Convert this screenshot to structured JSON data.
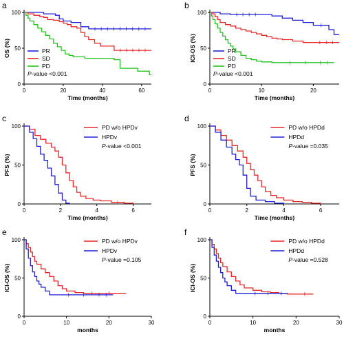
{
  "chart_data": [
    {
      "letter": "a",
      "type": "line",
      "step": true,
      "xlabel": "Time (months)",
      "ylabel": "OS (%)",
      "xlim": [
        0,
        65
      ],
      "ylim": [
        0,
        100
      ],
      "xticks": [
        0,
        20,
        40,
        60
      ],
      "yticks": [
        0,
        50,
        100
      ],
      "legend": "bottom-left",
      "pvalue": {
        "label": "P",
        "text": "-value <0.001"
      },
      "series": [
        {
          "name": "PR",
          "color": "#1f1fd6",
          "x": [
            0,
            4,
            10,
            14,
            16,
            18,
            20,
            22,
            24,
            27,
            29,
            33,
            65
          ],
          "y": [
            100,
            100,
            98,
            98,
            96,
            91,
            88,
            88,
            86,
            86,
            80,
            77,
            77
          ]
        },
        {
          "name": "SD",
          "color": "#e8262a",
          "x": [
            0,
            2,
            5,
            8,
            10,
            12,
            15,
            18,
            20,
            22,
            24,
            27,
            29,
            31,
            33,
            36,
            39,
            42,
            46,
            65
          ],
          "y": [
            100,
            98,
            96,
            94,
            93,
            90,
            89,
            87,
            85,
            83,
            80,
            78,
            72,
            66,
            62,
            57,
            53,
            53,
            47,
            47
          ]
        },
        {
          "name": "PD",
          "color": "#22c31f",
          "x": [
            0,
            1,
            2,
            3,
            5,
            7,
            9,
            11,
            13,
            15,
            17,
            19,
            21,
            23,
            25,
            28,
            31,
            35,
            38,
            42,
            46,
            49,
            55,
            58,
            64,
            65
          ],
          "y": [
            100,
            96,
            92,
            88,
            83,
            78,
            73,
            68,
            63,
            57,
            52,
            47,
            42,
            40,
            38,
            38,
            36,
            36,
            36,
            36,
            34,
            22,
            22,
            18,
            13,
            13
          ]
        }
      ]
    },
    {
      "letter": "b",
      "type": "line",
      "step": true,
      "xlabel": "Time (months)",
      "ylabel": "ICI-OS  (%)",
      "xlim": [
        0,
        25
      ],
      "ylim": [
        0,
        100
      ],
      "xticks": [
        0,
        10,
        20
      ],
      "yticks": [
        0,
        50,
        100
      ],
      "legend": "bottom-left",
      "pvalue": {
        "label": "P",
        "text": "-value <0.001"
      },
      "series": [
        {
          "name": "PR",
          "color": "#1f1fd6",
          "x": [
            0,
            2,
            4,
            10,
            12,
            14,
            16,
            18,
            20,
            23,
            24,
            25
          ],
          "y": [
            100,
            98,
            97,
            97,
            95,
            92,
            89,
            86,
            82,
            76,
            69,
            69
          ]
        },
        {
          "name": "SD",
          "color": "#e8262a",
          "x": [
            0,
            0.5,
            1,
            1.5,
            2,
            3,
            4,
            5,
            6,
            7,
            8,
            9,
            10,
            11,
            12,
            13,
            14,
            16,
            18,
            20,
            25
          ],
          "y": [
            100,
            98,
            94,
            90,
            86,
            83,
            81,
            78,
            76,
            74,
            72,
            70,
            68,
            66,
            64,
            63,
            62,
            60,
            58,
            58,
            58
          ]
        },
        {
          "name": "PD",
          "color": "#22c31f",
          "x": [
            0,
            0.3,
            0.6,
            1,
            1.5,
            2,
            2.5,
            3,
            3.5,
            4,
            4.5,
            5,
            6,
            7,
            8,
            9,
            10,
            12,
            14,
            17,
            20,
            24
          ],
          "y": [
            100,
            95,
            90,
            84,
            78,
            72,
            67,
            62,
            57,
            53,
            49,
            45,
            40,
            36,
            34,
            32,
            31,
            30,
            30,
            30,
            30,
            30
          ]
        }
      ]
    },
    {
      "letter": "c",
      "type": "line",
      "step": true,
      "xlabel": "Time (months)",
      "ylabel": "PFS (%)",
      "xlim": [
        0,
        7
      ],
      "ylim": [
        0,
        100
      ],
      "xticks": [
        0,
        2,
        4,
        6
      ],
      "yticks": [
        0,
        50,
        100
      ],
      "legend": "top-right",
      "pvalue": {
        "label": "P",
        "text": "-value <0.001"
      },
      "series": [
        {
          "name": "PD w/o HPDv",
          "color": "#e8262a",
          "x": [
            0,
            0.3,
            0.6,
            0.9,
            1.2,
            1.5,
            1.7,
            1.9,
            2.1,
            2.3,
            2.5,
            2.7,
            2.9,
            3.1,
            3.4,
            3.8,
            4.2,
            4.8,
            5.5,
            6
          ],
          "y": [
            100,
            96,
            88,
            83,
            78,
            73,
            68,
            60,
            50,
            40,
            30,
            22,
            15,
            10,
            7,
            5,
            4,
            2,
            1,
            0
          ]
        },
        {
          "name": "HPDv",
          "color": "#1f1fd6",
          "x": [
            0,
            0.3,
            0.5,
            0.7,
            0.9,
            1.1,
            1.3,
            1.5,
            1.7,
            1.9,
            2.1,
            2.3,
            2.5
          ],
          "y": [
            100,
            92,
            84,
            74,
            64,
            56,
            46,
            36,
            25,
            14,
            5,
            1,
            0
          ]
        }
      ]
    },
    {
      "letter": "d",
      "type": "line",
      "step": true,
      "xlabel": "Time (months)",
      "ylabel": "PFS (%)",
      "xlim": [
        0,
        7
      ],
      "ylim": [
        0,
        100
      ],
      "xticks": [
        0,
        2,
        4,
        6
      ],
      "yticks": [
        0,
        50,
        100
      ],
      "legend": "top-right",
      "pvalue": {
        "label": "P",
        "text": "-value =0.035"
      },
      "series": [
        {
          "name": "PD w/o HPDd",
          "color": "#e8262a",
          "x": [
            0,
            0.3,
            0.6,
            0.9,
            1.2,
            1.5,
            1.8,
            2.0,
            2.2,
            2.4,
            2.6,
            2.8,
            3.0,
            3.3,
            3.6,
            4.0,
            4.5,
            5.0,
            5.5,
            6
          ],
          "y": [
            100,
            95,
            88,
            82,
            75,
            68,
            60,
            52,
            44,
            37,
            30,
            22,
            16,
            11,
            8,
            5,
            3,
            2,
            1,
            0
          ]
        },
        {
          "name": "HPDd",
          "color": "#1f1fd6",
          "x": [
            0,
            0.3,
            0.6,
            0.9,
            1.2,
            1.4,
            1.6,
            1.8,
            2.0,
            2.2,
            2.5,
            3.0,
            3.5,
            4.0
          ],
          "y": [
            100,
            92,
            82,
            73,
            64,
            57,
            50,
            37,
            20,
            10,
            5,
            3,
            1,
            0
          ]
        }
      ]
    },
    {
      "letter": "e",
      "type": "line",
      "step": true,
      "xlabel": "months",
      "ylabel": "ICI-OS  (%)",
      "xlim": [
        0,
        30
      ],
      "ylim": [
        0,
        100
      ],
      "xticks": [
        0,
        10,
        20,
        30
      ],
      "yticks": [
        0,
        50,
        100
      ],
      "legend": "top-right",
      "pvalue": {
        "label": "P",
        "text": "-value =0.105"
      },
      "series": [
        {
          "name": "PD w/o HPDv",
          "color": "#e8262a",
          "x": [
            0,
            0.5,
            1,
            1.5,
            2,
            2.5,
            3,
            4,
            5,
            6,
            7,
            8,
            9,
            10,
            12,
            14,
            18,
            22,
            24
          ],
          "y": [
            100,
            95,
            90,
            84,
            78,
            72,
            68,
            62,
            57,
            52,
            46,
            40,
            36,
            33,
            31,
            30,
            30,
            30,
            30
          ]
        },
        {
          "name": "HPDv",
          "color": "#1f1fd6",
          "x": [
            0,
            0.5,
            1,
            1.5,
            2,
            2.5,
            3,
            3.5,
            4,
            5,
            6,
            7,
            9,
            12,
            16,
            21
          ],
          "y": [
            100,
            88,
            76,
            66,
            58,
            52,
            46,
            42,
            38,
            33,
            28,
            28,
            28,
            28,
            28,
            28
          ]
        }
      ]
    },
    {
      "letter": "f",
      "type": "line",
      "step": true,
      "xlabel": "months",
      "ylabel": "ICI-OS  (%)",
      "xlim": [
        0,
        30
      ],
      "ylim": [
        0,
        100
      ],
      "xticks": [
        0,
        10,
        20,
        30
      ],
      "yticks": [
        0,
        50,
        100
      ],
      "legend": "top-right",
      "pvalue": {
        "label": "P",
        "text": "-value =0.528"
      },
      "series": [
        {
          "name": "PD w/o HPDd",
          "color": "#e8262a",
          "x": [
            0,
            0.5,
            1,
            1.5,
            2,
            2.5,
            3,
            4,
            5,
            6,
            7,
            8,
            10,
            12,
            14,
            16,
            18,
            20,
            24
          ],
          "y": [
            100,
            94,
            88,
            82,
            76,
            70,
            65,
            58,
            52,
            46,
            41,
            37,
            34,
            32,
            31,
            30,
            29,
            29,
            29
          ]
        },
        {
          "name": "HPDd",
          "color": "#1f1fd6",
          "x": [
            0,
            0.5,
            1,
            1.5,
            2,
            2.5,
            3,
            3.5,
            4,
            5,
            6,
            7,
            9,
            12,
            15,
            18
          ],
          "y": [
            100,
            90,
            80,
            72,
            64,
            57,
            50,
            45,
            40,
            34,
            30,
            30,
            30,
            30,
            30,
            30
          ]
        }
      ]
    }
  ]
}
